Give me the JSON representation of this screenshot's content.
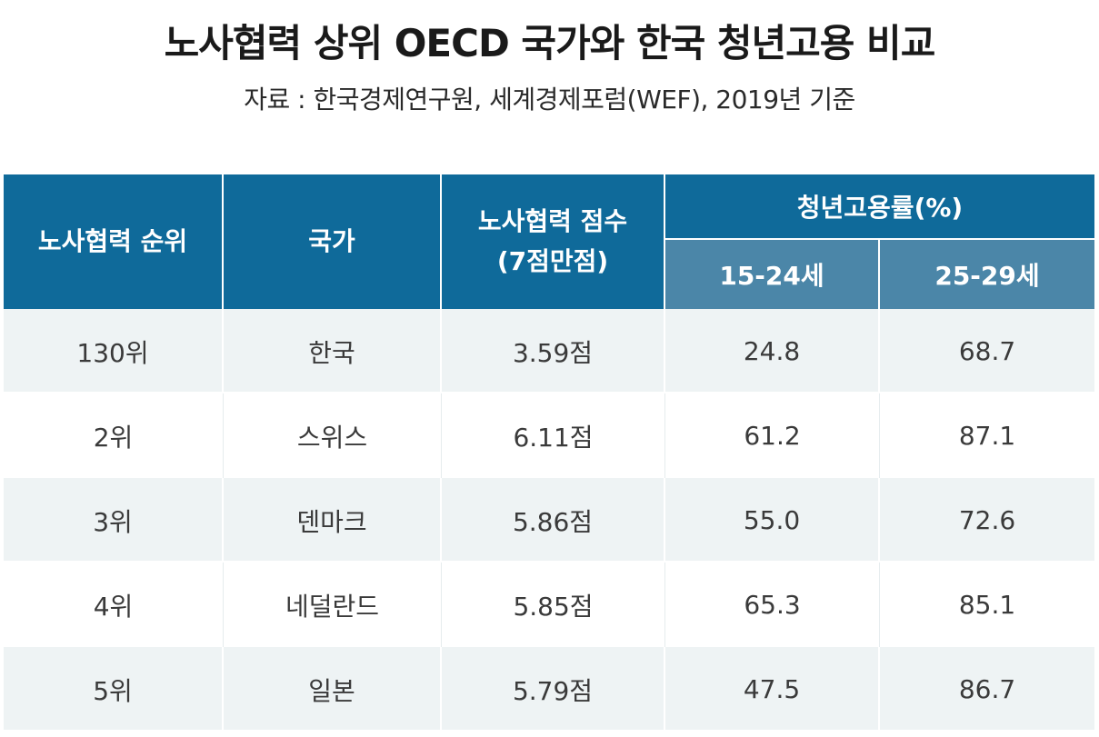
{
  "title": "노사협력 상위 OECD 국가와 한국 청년고용 비교",
  "subtitle": "자료 : 한국경제연구원, 세계경제포럼(WEF), 2019년 기준",
  "table": {
    "headers": {
      "rank": "노사협력 순위",
      "country": "국가",
      "score_line1": "노사협력 점수",
      "score_line2": "(7점만점)",
      "employment_group": "청년고용률(%)",
      "age_15_24": "15-24세",
      "age_25_29": "25-29세"
    },
    "rows": [
      {
        "rank": "130위",
        "country": "한국",
        "score": "3.59점",
        "age_15_24": "24.8",
        "age_25_29": "68.7"
      },
      {
        "rank": "2위",
        "country": "스위스",
        "score": "6.11점",
        "age_15_24": "61.2",
        "age_25_29": "87.1"
      },
      {
        "rank": "3위",
        "country": "덴마크",
        "score": "5.86점",
        "age_15_24": "55.0",
        "age_25_29": "72.6"
      },
      {
        "rank": "4위",
        "country": "네덜란드",
        "score": "5.85점",
        "age_15_24": "65.3",
        "age_25_29": "85.1"
      },
      {
        "rank": "5위",
        "country": "일본",
        "score": "5.79점",
        "age_15_24": "47.5",
        "age_25_29": "86.7"
      }
    ]
  },
  "colors": {
    "header": "#0f6a9a",
    "subheader": "#4b86a8",
    "row_shade": "#eef3f4"
  }
}
